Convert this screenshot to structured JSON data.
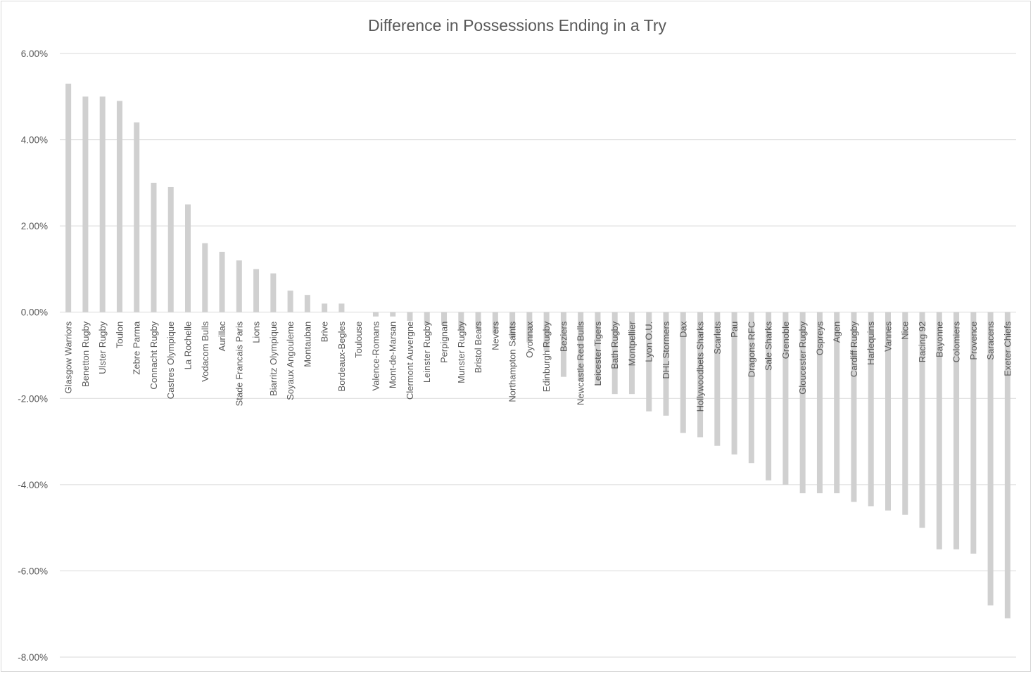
{
  "colors": {
    "bar": "#d0d0d0",
    "grid": "#d9d9d9",
    "text": "#595959",
    "background": "#ffffff"
  },
  "chart_data": {
    "type": "bar",
    "title": "Difference in Possessions Ending in a Try",
    "xlabel": "",
    "ylabel": "",
    "ylim": [
      -8,
      6
    ],
    "yticks": [
      6,
      4,
      2,
      0,
      -2,
      -4,
      -6,
      -8
    ],
    "ytick_labels": [
      "6.00%",
      "4.00%",
      "2.00%",
      "0.00%",
      "-2.00%",
      "-4.00%",
      "-6.00%",
      "-8.00%"
    ],
    "grid": true,
    "legend": "none",
    "value_unit": "percent",
    "categories": [
      "Glasgow Warriors",
      "Benetton Rugby",
      "Ulster Rugby",
      "Toulon",
      "Zebre Parma",
      "Connacht Rugby",
      "Castres Olympique",
      "La Rochelle",
      "Vodacom Bulls",
      "Aurillac",
      "Stade Francais Paris",
      "Lions",
      "Biarritz Olympique",
      "Soyaux Angouleme",
      "Montauban",
      "Brive",
      "Bordeaux-Begles",
      "Toulouse",
      "Valence-Romans",
      "Mont-de-Marsan",
      "Clermont Auvergne",
      "Leinster Rugby",
      "Perpignan",
      "Munster Rugby",
      "Bristol Bears",
      "Nevers",
      "Northampton Saints",
      "Oyonnax",
      "Edinburgh Rugby",
      "Beziers",
      "Newcastle Red Bulls",
      "Leicester Tigers",
      "Bath Rugby",
      "Montpellier",
      "Lyon O.U.",
      "DHL Stormers",
      "Dax",
      "Hollywoodbets Sharks",
      "Scarlets",
      "Pau",
      "Dragons RFC",
      "Sale Sharks",
      "Grenoble",
      "Gloucester Rugby",
      "Ospreys",
      "Agen",
      "Cardiff Rugby",
      "Harlequins",
      "Vannes",
      "Nice",
      "Racing 92",
      "Bayonne",
      "Colomiers",
      "Provence",
      "Saracens",
      "Exeter Chiefs"
    ],
    "values": [
      5.3,
      5.0,
      5.0,
      4.9,
      4.4,
      3.0,
      2.9,
      2.5,
      1.6,
      1.4,
      1.2,
      1.0,
      0.9,
      0.5,
      0.4,
      0.2,
      0.2,
      0.0,
      -0.1,
      -0.1,
      -0.2,
      -0.3,
      -0.3,
      -0.4,
      -0.4,
      -0.5,
      -0.6,
      -0.7,
      -0.9,
      -1.5,
      -1.6,
      -1.7,
      -1.9,
      -1.9,
      -2.3,
      -2.4,
      -2.8,
      -2.9,
      -3.1,
      -3.3,
      -3.5,
      -3.9,
      -4.0,
      -4.2,
      -4.2,
      -4.2,
      -4.4,
      -4.5,
      -4.6,
      -4.7,
      -5.0,
      -5.5,
      -5.5,
      -5.6,
      -6.8,
      -7.1
    ]
  }
}
